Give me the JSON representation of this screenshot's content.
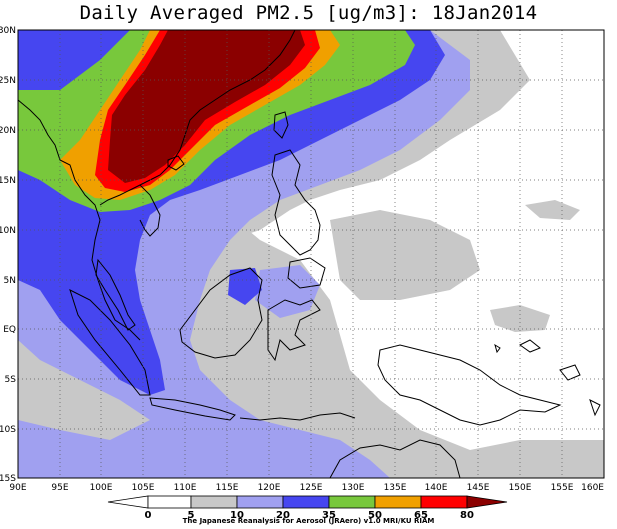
{
  "map": {
    "title": "Daily Averaged PM2.5 [ug/m3]: 18Jan2014",
    "lon_labels": [
      "90E",
      "95E",
      "100E",
      "105E",
      "110E",
      "115E",
      "120E",
      "125E",
      "130E",
      "135E",
      "140E",
      "145E",
      "150E",
      "155E",
      "160E"
    ],
    "lat_labels": [
      "30N",
      "25N",
      "20N",
      "15N",
      "10N",
      "5N",
      "EQ",
      "5S",
      "10S",
      "15S"
    ],
    "colorbar": {
      "levels": [
        "0",
        "5",
        "10",
        "20",
        "35",
        "50",
        "65",
        "80"
      ],
      "colors": [
        "#ffffff",
        "#c8c8c8",
        "#a0a0f0",
        "#4646f0",
        "#78c83c",
        "#f0a000",
        "#ff0000",
        "#8b0000"
      ]
    },
    "credit": "The Japanese Reanalysis for Aerosol (JRAero) v1.0 MRI/KU RIAM"
  }
}
